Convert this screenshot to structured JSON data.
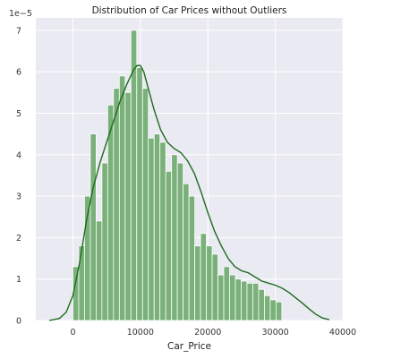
{
  "chart_data": {
    "type": "bar",
    "title": "Distribution of Car Prices without Outliers",
    "xlabel": "Car_Price",
    "ylabel": "",
    "y_scale_label": "1e−5",
    "xlim": [
      -5500,
      40000
    ],
    "ylim": [
      0,
      7.3
    ],
    "x_ticks": [
      0,
      10000,
      20000,
      30000,
      40000
    ],
    "y_ticks": [
      0,
      1,
      2,
      3,
      4,
      5,
      6,
      7
    ],
    "grid": true,
    "bin_start": 0,
    "bin_width": 860,
    "bar_values": [
      1.3,
      1.8,
      3.0,
      4.5,
      2.4,
      3.8,
      5.2,
      5.6,
      5.9,
      5.5,
      7.0,
      6.1,
      5.6,
      4.4,
      4.5,
      4.3,
      3.6,
      4.0,
      3.8,
      3.3,
      3.0,
      1.8,
      2.1,
      1.8,
      1.6,
      1.1,
      1.3,
      1.1,
      1.0,
      0.95,
      0.9,
      0.9,
      0.75,
      0.6,
      0.5,
      0.45
    ],
    "kde": {
      "x": [
        -3500,
        -2000,
        -1000,
        0,
        1000,
        2000,
        3000,
        4000,
        5000,
        6000,
        7000,
        8000,
        9000,
        9500,
        10000,
        10500,
        11000,
        12000,
        13000,
        14000,
        15000,
        16000,
        17000,
        18000,
        19000,
        20000,
        21000,
        22000,
        23000,
        24000,
        25000,
        26000,
        27000,
        28000,
        29000,
        30000,
        31000,
        32000,
        33000,
        34000,
        35000,
        36000,
        37000,
        38000
      ],
      "y": [
        0.0,
        0.05,
        0.2,
        0.6,
        1.4,
        2.4,
        3.2,
        3.8,
        4.3,
        4.8,
        5.3,
        5.7,
        6.05,
        6.15,
        6.15,
        6.0,
        5.7,
        5.1,
        4.6,
        4.3,
        4.15,
        4.05,
        3.85,
        3.55,
        3.1,
        2.6,
        2.15,
        1.8,
        1.5,
        1.3,
        1.2,
        1.15,
        1.05,
        0.95,
        0.9,
        0.85,
        0.78,
        0.68,
        0.55,
        0.42,
        0.28,
        0.15,
        0.06,
        0.02
      ]
    },
    "colors": {
      "background": "#eaeaf2",
      "bar_fill": "#7ab07a",
      "bar_edge": "#ffffff",
      "kde_line": "#1f6b1f",
      "grid": "#ffffff"
    }
  }
}
